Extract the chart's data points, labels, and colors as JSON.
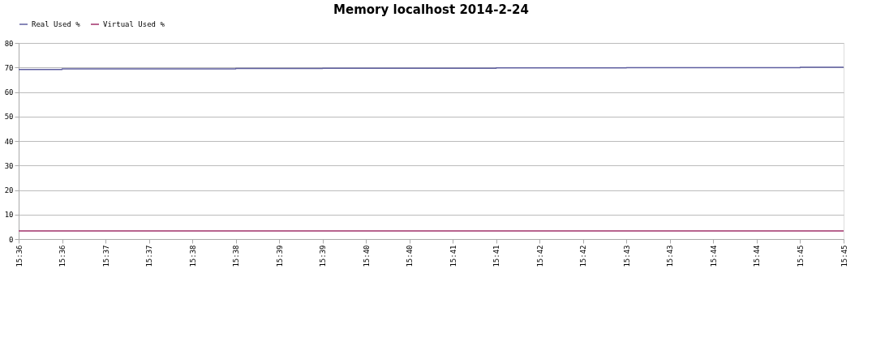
{
  "chart_data": {
    "type": "step",
    "title": "Memory localhost  2014-2-24",
    "categories": [
      "15:36",
      "15:36",
      "15:37",
      "15:37",
      "15:38",
      "15:38",
      "15:39",
      "15:39",
      "15:40",
      "15:40",
      "15:41",
      "15:41",
      "15:42",
      "15:42",
      "15:43",
      "15:43",
      "15:44",
      "15:44",
      "15:45",
      "15:45"
    ],
    "series": [
      {
        "name": "Real Used %",
        "color": "#5f5fa0",
        "values": [
          69.2,
          69.4,
          69.4,
          69.4,
          69.4,
          69.6,
          69.6,
          69.7,
          69.7,
          69.7,
          69.7,
          69.8,
          69.8,
          69.8,
          69.9,
          69.9,
          69.9,
          69.9,
          70.1,
          70.1
        ]
      },
      {
        "name": "Virtual Used %",
        "color": "#a0306a",
        "values": [
          3.3,
          3.3,
          3.3,
          3.3,
          3.3,
          3.3,
          3.3,
          3.3,
          3.3,
          3.3,
          3.3,
          3.3,
          3.3,
          3.3,
          3.3,
          3.3,
          3.3,
          3.3,
          3.3,
          3.3
        ]
      }
    ],
    "ylim": [
      0,
      80
    ],
    "yticks": [
      0,
      10,
      20,
      30,
      40,
      50,
      60,
      70,
      80
    ],
    "grid": "y",
    "legend": "top",
    "marker": "none",
    "line_style": "solid"
  }
}
